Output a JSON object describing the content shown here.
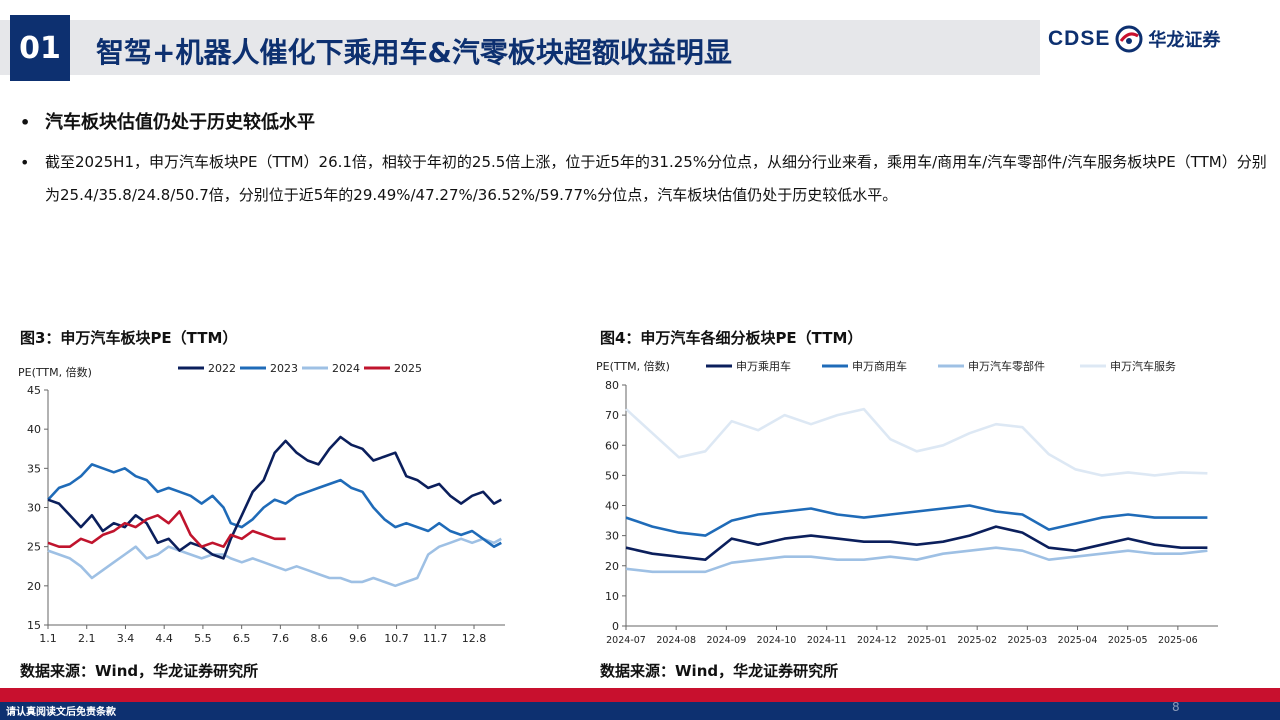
{
  "header": {
    "section_number": "01",
    "title": "智驾+机器人催化下乘用车&汽零板块超额收益明显",
    "logo_code": "CDSE",
    "logo_name": "华龙证券"
  },
  "bullets": {
    "b1": "汽车板块估值仍处于历史较低水平",
    "b2": "截至2025H1，申万汽车板块PE（TTM）26.1倍，相较于年初的25.5倍上涨，位于近5年的31.25%分位点，从细分行业来看，乘用车/商用车/汽车零部件/汽车服务板块PE（TTM）分别为25.4/35.8/24.8/50.7倍，分别位于近5年的29.49%/47.27%/36.52%/59.77%分位点，汽车板块估值仍处于历史较低水平。"
  },
  "fig3": {
    "title": "图3：申万汽车板块PE（TTM）",
    "source": "数据来源：Wind，华龙证券研究所"
  },
  "fig4": {
    "title": "图4：申万汽车各细分板块PE（TTM）",
    "source": "数据来源：Wind，华龙证券研究所"
  },
  "footer": {
    "disclaimer": "请认真阅读文后免责条款",
    "page": "8"
  },
  "chart_data": [
    {
      "type": "line",
      "ylabel": "PE(TTM, 倍数)",
      "ylim": [
        15,
        45
      ],
      "yticks": [
        15,
        20,
        25,
        30,
        35,
        40,
        45
      ],
      "xtick_labels": [
        "1.1",
        "2.1",
        "3.4",
        "4.4",
        "5.5",
        "6.5",
        "7.6",
        "8.6",
        "9.6",
        "10.7",
        "11.7",
        "12.8"
      ],
      "xlim": [
        0,
        12.5
      ],
      "grid": false,
      "legend": "top",
      "series": [
        {
          "name": "2022",
          "color": "#0b1f5c",
          "x": [
            0,
            0.3,
            0.6,
            0.9,
            1.2,
            1.5,
            1.8,
            2.1,
            2.4,
            2.7,
            3.0,
            3.3,
            3.6,
            3.9,
            4.2,
            4.5,
            4.8,
            5.0,
            5.3,
            5.6,
            5.9,
            6.2,
            6.5,
            6.8,
            7.1,
            7.4,
            7.7,
            8.0,
            8.3,
            8.6,
            8.9,
            9.2,
            9.5,
            9.8,
            10.1,
            10.4,
            10.7,
            11.0,
            11.3,
            11.6,
            11.9,
            12.2,
            12.4
          ],
          "y": [
            31,
            30.5,
            29,
            27.5,
            29,
            27,
            28,
            27.5,
            29,
            28,
            25.5,
            26,
            24.5,
            25.5,
            25,
            24,
            23.5,
            26,
            29,
            32,
            33.5,
            37,
            38.5,
            37,
            36,
            35.5,
            37.5,
            39,
            38,
            37.5,
            36,
            36.5,
            37,
            34,
            33.5,
            32.5,
            33,
            31.5,
            30.5,
            31.5,
            32,
            30.5,
            31
          ]
        },
        {
          "name": "2023",
          "color": "#1f6bb8",
          "x": [
            0,
            0.3,
            0.6,
            0.9,
            1.2,
            1.5,
            1.8,
            2.1,
            2.4,
            2.7,
            3.0,
            3.3,
            3.6,
            3.9,
            4.2,
            4.5,
            4.8,
            5.0,
            5.3,
            5.6,
            5.9,
            6.2,
            6.5,
            6.8,
            7.1,
            7.4,
            7.7,
            8.0,
            8.3,
            8.6,
            8.9,
            9.2,
            9.5,
            9.8,
            10.1,
            10.4,
            10.7,
            11.0,
            11.3,
            11.6,
            11.9,
            12.2,
            12.4
          ],
          "y": [
            31,
            32.5,
            33,
            34,
            35.5,
            35,
            34.5,
            35,
            34,
            33.5,
            32,
            32.5,
            32,
            31.5,
            30.5,
            31.5,
            30,
            28,
            27.5,
            28.5,
            30,
            31,
            30.5,
            31.5,
            32,
            32.5,
            33,
            33.5,
            32.5,
            32,
            30,
            28.5,
            27.5,
            28,
            27.5,
            27,
            28,
            27,
            26.5,
            27,
            26,
            25,
            25.5
          ]
        },
        {
          "name": "2024",
          "color": "#9ec0e4",
          "x": [
            0,
            0.3,
            0.6,
            0.9,
            1.2,
            1.5,
            1.8,
            2.1,
            2.4,
            2.7,
            3.0,
            3.3,
            3.6,
            3.9,
            4.2,
            4.5,
            4.8,
            5.0,
            5.3,
            5.6,
            5.9,
            6.2,
            6.5,
            6.8,
            7.1,
            7.4,
            7.7,
            8.0,
            8.3,
            8.6,
            8.9,
            9.2,
            9.5,
            9.8,
            10.1,
            10.4,
            10.7,
            11.0,
            11.3,
            11.6,
            11.9,
            12.2,
            12.4
          ],
          "y": [
            24.5,
            24,
            23.5,
            22.5,
            21,
            22,
            23,
            24,
            25,
            23.5,
            24,
            25,
            24.5,
            24,
            23.5,
            24,
            24,
            23.5,
            23,
            23.5,
            23,
            22.5,
            22,
            22.5,
            22,
            21.5,
            21,
            21,
            20.5,
            20.5,
            21,
            20.5,
            20,
            20.5,
            21,
            24,
            25,
            25.5,
            26,
            25.5,
            26,
            25.5,
            26
          ]
        },
        {
          "name": "2025",
          "color": "#c0142d",
          "x": [
            0,
            0.3,
            0.6,
            0.9,
            1.2,
            1.5,
            1.8,
            2.1,
            2.4,
            2.7,
            3.0,
            3.3,
            3.6,
            3.9,
            4.2,
            4.5,
            4.8,
            5.0,
            5.3,
            5.6,
            5.9,
            6.2,
            6.5
          ],
          "y": [
            25.5,
            25,
            25,
            26,
            25.5,
            26.5,
            27,
            28,
            27.5,
            28.5,
            29,
            28,
            29.5,
            26.5,
            25,
            25.5,
            25,
            26.5,
            26,
            27,
            26.5,
            26,
            26
          ]
        }
      ]
    },
    {
      "type": "line",
      "ylabel": "PE(TTM, 倍数)",
      "ylim": [
        0,
        80
      ],
      "yticks": [
        0,
        10,
        20,
        30,
        40,
        50,
        60,
        70,
        80
      ],
      "xtick_labels": [
        "2024-07",
        "2024-08",
        "2024-09",
        "2024-10",
        "2024-11",
        "2024-12",
        "2025-01",
        "2025-02",
        "2025-03",
        "2025-04",
        "2025-05",
        "2025-06"
      ],
      "xlim": [
        0,
        11.2
      ],
      "grid": false,
      "legend": "top",
      "series": [
        {
          "name": "申万乘用车",
          "color": "#0b1f5c",
          "x": [
            0,
            0.5,
            1,
            1.5,
            2,
            2.5,
            3,
            3.5,
            4,
            4.5,
            5,
            5.5,
            6,
            6.5,
            7,
            7.5,
            8,
            8.5,
            9,
            9.5,
            10,
            10.5,
            11
          ],
          "y": [
            26,
            24,
            23,
            22,
            29,
            27,
            29,
            30,
            29,
            28,
            28,
            27,
            28,
            30,
            33,
            31,
            26,
            25,
            27,
            29,
            27,
            26,
            26
          ]
        },
        {
          "name": "申万商用车",
          "color": "#1f6bb8",
          "x": [
            0,
            0.5,
            1,
            1.5,
            2,
            2.5,
            3,
            3.5,
            4,
            4.5,
            5,
            5.5,
            6,
            6.5,
            7,
            7.5,
            8,
            8.5,
            9,
            9.5,
            10,
            10.5,
            11
          ],
          "y": [
            36,
            33,
            31,
            30,
            35,
            37,
            38,
            39,
            37,
            36,
            37,
            38,
            39,
            40,
            38,
            37,
            32,
            34,
            36,
            37,
            36,
            36,
            36
          ]
        },
        {
          "name": "申万汽车零部件",
          "color": "#9ec0e4",
          "x": [
            0,
            0.5,
            1,
            1.5,
            2,
            2.5,
            3,
            3.5,
            4,
            4.5,
            5,
            5.5,
            6,
            6.5,
            7,
            7.5,
            8,
            8.5,
            9,
            9.5,
            10,
            10.5,
            11
          ],
          "y": [
            19,
            18,
            18,
            18,
            21,
            22,
            23,
            23,
            22,
            22,
            23,
            22,
            24,
            25,
            26,
            25,
            22,
            23,
            24,
            25,
            24,
            24,
            25
          ]
        },
        {
          "name": "申万汽车服务",
          "color": "#dde8f4",
          "x": [
            0,
            0.5,
            1,
            1.5,
            2,
            2.5,
            3,
            3.5,
            4,
            4.5,
            5,
            5.5,
            6,
            6.5,
            7,
            7.5,
            8,
            8.5,
            9,
            9.5,
            10,
            10.5,
            11
          ],
          "y": [
            72,
            64,
            56,
            58,
            68,
            65,
            70,
            67,
            70,
            72,
            62,
            58,
            60,
            64,
            67,
            66,
            57,
            52,
            50,
            51,
            50,
            51,
            50.7
          ]
        }
      ]
    }
  ]
}
